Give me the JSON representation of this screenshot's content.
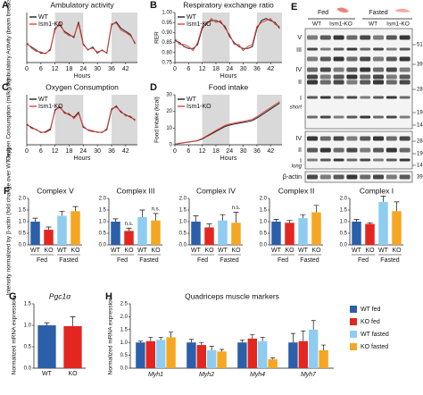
{
  "chart_data": [
    {
      "type": "line",
      "label": "A",
      "title": "Ambulatory activity",
      "ylabel": "Ambulatory Activity (beam breaks/hr)",
      "xlabel": "Hours",
      "x": [
        0,
        2,
        4,
        6,
        8,
        10,
        12,
        14,
        16,
        18,
        20,
        22,
        24,
        26,
        28,
        30,
        32,
        34,
        36,
        38,
        40,
        42,
        44,
        46
      ],
      "xlim": [
        0,
        47
      ],
      "xticks": [
        0,
        6,
        12,
        18,
        24,
        30,
        36,
        42
      ],
      "ylim": [
        0,
        800
      ],
      "shaded": [
        [
          12,
          24
        ],
        [
          36,
          47
        ]
      ],
      "series": [
        {
          "name": "WT",
          "color": "#222222",
          "values": [
            300,
            250,
            200,
            150,
            150,
            200,
            550,
            600,
            500,
            450,
            400,
            650,
            300,
            200,
            250,
            150,
            200,
            150,
            600,
            650,
            550,
            500,
            450,
            300
          ]
        },
        {
          "name": "Ism1-KO",
          "color": "#e0403a",
          "values": [
            320,
            230,
            180,
            170,
            140,
            220,
            520,
            640,
            480,
            430,
            420,
            620,
            280,
            210,
            230,
            170,
            190,
            160,
            620,
            630,
            520,
            480,
            430,
            320
          ]
        }
      ]
    },
    {
      "type": "line",
      "label": "B",
      "title": "Respiratory exchange ratio",
      "ylabel": "RER",
      "xlabel": "Hours",
      "x": [
        0,
        2,
        4,
        6,
        8,
        10,
        12,
        14,
        16,
        18,
        20,
        22,
        24,
        26,
        28,
        30,
        32,
        34,
        36,
        38,
        40,
        42,
        44,
        46
      ],
      "xlim": [
        0,
        47
      ],
      "xticks": [
        0,
        6,
        12,
        18,
        24,
        30,
        36,
        42
      ],
      "ylim": [
        0.75,
        1.0
      ],
      "yticks": [
        0.75,
        {
          "value": 0.8,
          "label": "0.80"
        },
        0.85,
        {
          "value": 0.9,
          "label": "0.90"
        },
        0.95,
        {
          "value": 1.0,
          "label": "1.00"
        }
      ],
      "shaded": [
        [
          12,
          24
        ],
        [
          36,
          47
        ]
      ],
      "series": [
        {
          "name": "WT",
          "color": "#222222",
          "values": [
            0.86,
            0.85,
            0.83,
            0.82,
            0.82,
            0.84,
            0.92,
            0.95,
            0.96,
            0.96,
            0.95,
            0.93,
            0.88,
            0.85,
            0.83,
            0.82,
            0.82,
            0.83,
            0.92,
            0.96,
            0.97,
            0.96,
            0.95,
            0.92
          ]
        },
        {
          "name": "Ism1-KO",
          "color": "#e0403a",
          "values": [
            0.87,
            0.84,
            0.84,
            0.83,
            0.81,
            0.85,
            0.93,
            0.94,
            0.97,
            0.95,
            0.96,
            0.92,
            0.89,
            0.84,
            0.84,
            0.81,
            0.83,
            0.84,
            0.93,
            0.95,
            0.96,
            0.97,
            0.94,
            0.93
          ]
        }
      ]
    },
    {
      "type": "line",
      "label": "C",
      "title": "Oxygen Consumption",
      "ylabel": "Oxygen Consumption (ml/kg/hr)",
      "xlabel": "Hours",
      "x": [
        0,
        2,
        4,
        6,
        8,
        10,
        12,
        14,
        16,
        18,
        20,
        22,
        24,
        26,
        28,
        30,
        32,
        34,
        36,
        38,
        40,
        42,
        44,
        46
      ],
      "xlim": [
        0,
        47
      ],
      "xticks": [
        0,
        6,
        12,
        18,
        24,
        30,
        36,
        42
      ],
      "ylim": [
        2000,
        4000
      ],
      "shaded": [
        [
          12,
          24
        ],
        [
          36,
          47
        ]
      ],
      "series": [
        {
          "name": "WT",
          "color": "#222222",
          "values": [
            2800,
            2700,
            2600,
            2500,
            2500,
            2600,
            3400,
            3500,
            3300,
            3200,
            3100,
            3300,
            2700,
            2600,
            2550,
            2500,
            2500,
            2600,
            3400,
            3550,
            3300,
            3200,
            3100,
            3000
          ]
        },
        {
          "name": "Ism1-KO",
          "color": "#e0403a",
          "values": [
            2850,
            2650,
            2620,
            2480,
            2530,
            2650,
            3350,
            3550,
            3250,
            3250,
            3050,
            3250,
            2750,
            2580,
            2520,
            2520,
            2480,
            2650,
            3450,
            3500,
            3350,
            3150,
            3150,
            2950
          ]
        }
      ]
    },
    {
      "type": "line",
      "label": "D",
      "title": "Food intake",
      "ylabel": "Food intake (kcal)",
      "xlabel": "Hours",
      "x": [
        0,
        2,
        4,
        6,
        8,
        10,
        12,
        14,
        16,
        18,
        20,
        22,
        24,
        26,
        28,
        30,
        32,
        34,
        36,
        38,
        40,
        42,
        44,
        46
      ],
      "xlim": [
        0,
        47
      ],
      "xticks": [
        0,
        6,
        12,
        18,
        24,
        30,
        36,
        42
      ],
      "ylim": [
        0,
        30
      ],
      "yticks": [
        0,
        10,
        20,
        30
      ],
      "shaded": [
        [
          12,
          24
        ],
        [
          36,
          47
        ]
      ],
      "series": [
        {
          "name": "WT",
          "color": "#222222",
          "values": [
            0.3,
            0.8,
            1.2,
            1.6,
            2.0,
            2.4,
            3.5,
            5.0,
            6.5,
            8.0,
            9.5,
            11.0,
            11.8,
            12.4,
            12.9,
            13.4,
            13.9,
            14.5,
            16.0,
            17.8,
            19.6,
            21.4,
            23.2,
            25.0
          ]
        },
        {
          "name": "Ism1-KO",
          "color": "#e0403a",
          "values": [
            0.3,
            0.9,
            1.3,
            1.7,
            2.1,
            2.6,
            3.8,
            5.4,
            7.0,
            8.6,
            10.1,
            11.6,
            12.4,
            13.0,
            13.5,
            14.0,
            14.6,
            15.2,
            16.8,
            18.7,
            20.5,
            22.3,
            24.1,
            26.0
          ]
        }
      ]
    },
    {
      "type": "bar",
      "label": "F",
      "title": "Complex V",
      "ylabel": "Intensity normalized by β-actin (fold change over WT-fed)",
      "categories": [
        "WT",
        "KO",
        "WT",
        "KO"
      ],
      "group_labels": [
        "Fed",
        "Fasted"
      ],
      "values": [
        1.0,
        0.65,
        1.25,
        1.45
      ],
      "errors": [
        0.15,
        0.12,
        0.2,
        0.2
      ],
      "annotations": [
        null,
        null,
        null,
        null
      ],
      "colors": [
        "#2b5faa",
        "#e3261f",
        "#8ecdf0",
        "#f5a623"
      ],
      "ylim": [
        0,
        2
      ],
      "yticks": [
        {
          "value": 0,
          "label": "0.0"
        },
        0.5,
        {
          "value": 1,
          "label": "1.0"
        },
        1.5,
        {
          "value": 2,
          "label": "2.0"
        }
      ]
    },
    {
      "type": "bar",
      "title": "Complex III",
      "categories": [
        "WT",
        "KO",
        "WT",
        "KO"
      ],
      "group_labels": [
        "Fed",
        "Fasted"
      ],
      "values": [
        1.0,
        0.6,
        1.2,
        1.05
      ],
      "errors": [
        0.12,
        0.12,
        0.3,
        0.3
      ],
      "annotations": [
        null,
        "n.s.",
        null,
        "n.s."
      ],
      "colors": [
        "#2b5faa",
        "#e3261f",
        "#8ecdf0",
        "#f5a623"
      ],
      "ylim": [
        0,
        2
      ],
      "yticks": [
        {
          "value": 0,
          "label": "0.0"
        },
        0.5,
        {
          "value": 1,
          "label": "1.0"
        },
        1.5,
        {
          "value": 2,
          "label": "2.0"
        }
      ]
    },
    {
      "type": "bar",
      "title": "Complex IV",
      "categories": [
        "WT",
        "KO",
        "WT",
        "KO"
      ],
      "group_labels": [
        "Fed",
        "Fasted"
      ],
      "values": [
        1.0,
        0.75,
        1.05,
        0.95
      ],
      "errors": [
        0.25,
        0.15,
        0.25,
        0.45
      ],
      "annotations": [
        null,
        null,
        null,
        "n.s."
      ],
      "colors": [
        "#2b5faa",
        "#e3261f",
        "#8ecdf0",
        "#f5a623"
      ],
      "ylim": [
        0,
        2
      ],
      "yticks": [
        {
          "value": 0,
          "label": "0.0"
        },
        0.5,
        {
          "value": 1,
          "label": "1.0"
        },
        1.5,
        {
          "value": 2,
          "label": "2.0"
        }
      ]
    },
    {
      "type": "bar",
      "title": "Complex II",
      "categories": [
        "WT",
        "KO",
        "WT",
        "KO"
      ],
      "group_labels": [
        "Fed",
        "Fasted"
      ],
      "values": [
        1.0,
        0.95,
        1.15,
        1.4
      ],
      "errors": [
        0.1,
        0.1,
        0.15,
        0.3
      ],
      "annotations": [
        null,
        null,
        null,
        null
      ],
      "colors": [
        "#2b5faa",
        "#e3261f",
        "#8ecdf0",
        "#f5a623"
      ],
      "ylim": [
        0,
        2
      ],
      "yticks": [
        {
          "value": 0,
          "label": "0.0"
        },
        0.5,
        {
          "value": 1,
          "label": "1.0"
        },
        1.5,
        {
          "value": 2,
          "label": "2.0"
        }
      ]
    },
    {
      "type": "bar",
      "title": "Complex I",
      "categories": [
        "WT",
        "KO",
        "WT",
        "KO"
      ],
      "group_labels": [
        "Fed",
        "Fasted"
      ],
      "values": [
        1.0,
        0.9,
        1.85,
        1.45
      ],
      "errors": [
        0.1,
        0.05,
        0.25,
        0.4
      ],
      "annotations": [
        null,
        null,
        null,
        null
      ],
      "colors": [
        "#2b5faa",
        "#e3261f",
        "#8ecdf0",
        "#f5a623"
      ],
      "ylim": [
        0,
        2
      ],
      "yticks": [
        {
          "value": 0,
          "label": "0.0"
        },
        0.5,
        {
          "value": 1,
          "label": "1.0"
        },
        1.5,
        {
          "value": 2,
          "label": "2.0"
        }
      ]
    },
    {
      "type": "bar",
      "label": "G",
      "title": "Pgc1α",
      "ylabel": "Normalized mRNA expression",
      "categories": [
        "WT",
        "KO"
      ],
      "values": [
        1.0,
        0.98
      ],
      "errors": [
        0.06,
        0.22
      ],
      "annotations": [
        null,
        null
      ],
      "colors": [
        "#2b5faa",
        "#e3261f"
      ],
      "ylim": [
        0,
        1.5
      ],
      "yticks": [
        {
          "value": 0,
          "label": "0.0"
        },
        0.5,
        {
          "value": 1,
          "label": "1.0"
        },
        1.5
      ]
    },
    {
      "type": "grouped_bar",
      "label": "H",
      "title": "Quadriceps muscle markers",
      "ylabel": "Normalized mRNA expression",
      "categories": [
        "Myh1",
        "Myh2",
        "Myh4",
        "Myh7"
      ],
      "ylim": [
        0,
        2.5
      ],
      "yticks": [
        {
          "value": 0,
          "label": "0.0"
        },
        0.5,
        {
          "value": 1,
          "label": "1.0"
        },
        1.5,
        {
          "value": 2,
          "label": "2.0"
        },
        2.5
      ],
      "series": [
        {
          "name": "WT fed",
          "color": "#2b5faa",
          "values": [
            1.0,
            1.0,
            1.0,
            1.0
          ],
          "errors": [
            0.05,
            0.12,
            0.1,
            0.35
          ]
        },
        {
          "name": "KO fed",
          "color": "#e3261f",
          "values": [
            1.05,
            0.9,
            1.15,
            1.05
          ],
          "errors": [
            0.15,
            0.1,
            0.15,
            0.4
          ]
        },
        {
          "name": "WT fasted",
          "color": "#8ecdf0",
          "values": [
            1.1,
            0.7,
            1.05,
            1.5
          ],
          "errors": [
            0.1,
            0.15,
            0.15,
            0.35
          ]
        },
        {
          "name": "KO fasted",
          "color": "#f5a623",
          "values": [
            1.2,
            0.65,
            0.35,
            0.7
          ],
          "errors": [
            0.2,
            0.08,
            0.05,
            0.2
          ]
        }
      ]
    }
  ],
  "blot": {
    "label": "E",
    "conditions": [
      "Fed",
      "Fasted"
    ],
    "lanes": [
      "WT",
      "Ism1-KO",
      "WT",
      "Ism1-KO"
    ],
    "panel1_labels": [
      "V",
      "III",
      "IV",
      "II",
      "I",
      "short"
    ],
    "panel1_markers": [
      "51",
      "39",
      "28",
      "19",
      "14"
    ],
    "panel2_labels": [
      "IV",
      "II",
      "I",
      "long"
    ],
    "panel2_markers": [
      "28",
      "19",
      "14"
    ],
    "loading": "β-actin",
    "loading_marker": "39"
  }
}
